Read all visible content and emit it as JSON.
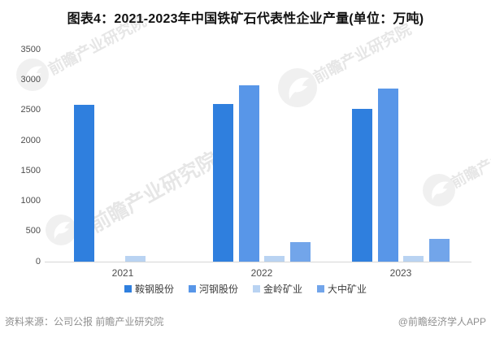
{
  "title": "图表4：2021-2023年中国铁矿石代表性企业产量(单位：万吨)",
  "chart_data": {
    "type": "bar",
    "title": "图表4：2021-2023年中国铁矿石代表性企业产量(单位：万吨)",
    "categories": [
      "2021",
      "2022",
      "2023"
    ],
    "series": [
      {
        "name": "鞍钢股份",
        "color": "#2F7FDE",
        "values": [
          2590,
          2610,
          2530
        ]
      },
      {
        "name": "河钢股份",
        "color": "#5896E8",
        "values": [
          null,
          2920,
          2860
        ]
      },
      {
        "name": "金岭矿业",
        "color": "#B9D3F2",
        "values": [
          100,
          100,
          100
        ]
      },
      {
        "name": "大中矿业",
        "color": "#72A5EA",
        "values": [
          null,
          320,
          375
        ]
      }
    ],
    "xlabel": "",
    "ylabel": "",
    "ylim": [
      0,
      3500
    ],
    "yticks": [
      0,
      500,
      1000,
      1500,
      2000,
      2500,
      3000,
      3500
    ],
    "grid": false,
    "legend_position": "bottom",
    "unit": "万吨"
  },
  "footer": {
    "source": "资料来源：公司公报 前瞻产业研究院",
    "credit": "@前瞻经济学人APP"
  },
  "watermark": {
    "text": "前瞻产业研究院"
  }
}
